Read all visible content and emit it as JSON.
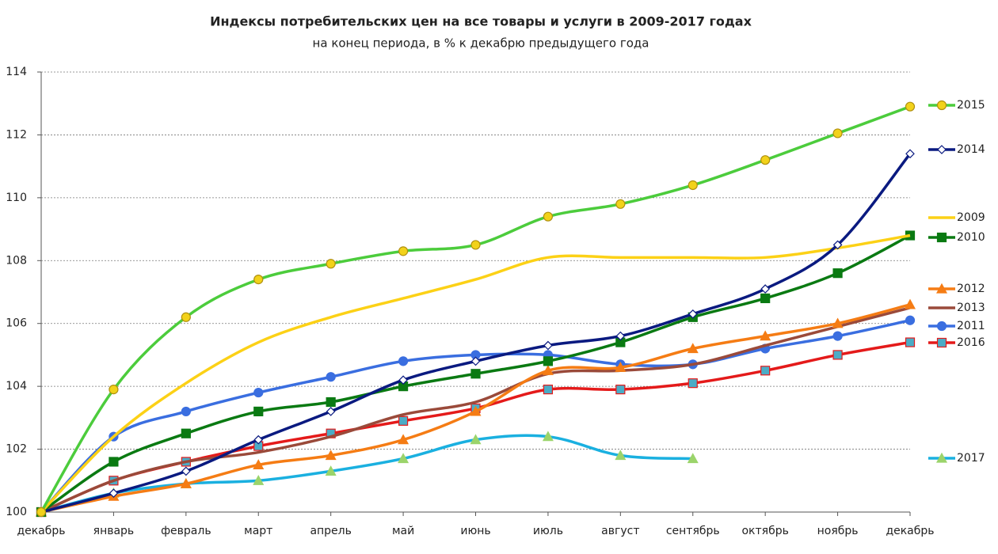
{
  "chart_data": {
    "type": "line",
    "title": "Индексы потребительских цен на все товары и услуги в 2009-2017 годах",
    "subtitle": "на конец периода, в % к декабрю предыдущего года",
    "categories": [
      "декабрь",
      "январь",
      "февраль",
      "март",
      "апрель",
      "май",
      "июнь",
      "июль",
      "август",
      "сентябрь",
      "октябрь",
      "ноябрь",
      "декабрь"
    ],
    "ylim": [
      100,
      114
    ],
    "yticks": [
      100,
      102,
      104,
      106,
      108,
      110,
      112,
      114
    ],
    "grid": true,
    "legend": "right",
    "series": [
      {
        "name": "2015",
        "color": "#4ccc3c",
        "marker": "circle",
        "marker_fill": "#f2d21a",
        "values": [
          100,
          103.9,
          106.2,
          107.4,
          107.9,
          108.3,
          108.5,
          109.4,
          109.8,
          110.4,
          111.2,
          112.05,
          112.9
        ]
      },
      {
        "name": "2014",
        "color": "#0a1a80",
        "marker": "diamond",
        "marker_fill": "#ffffff",
        "values": [
          100,
          100.6,
          101.3,
          102.3,
          103.2,
          104.2,
          104.8,
          105.3,
          105.6,
          106.3,
          107.1,
          108.5,
          111.4
        ]
      },
      {
        "name": "2009",
        "color": "#fcd116",
        "marker": "none",
        "marker_fill": "#fcd116",
        "values": [
          100,
          102.4,
          104.1,
          105.4,
          106.2,
          106.8,
          107.4,
          108.1,
          108.1,
          108.1,
          108.1,
          108.4,
          108.8
        ]
      },
      {
        "name": "2010",
        "color": "#0a7a12",
        "marker": "square",
        "marker_fill": "#0a7a12",
        "values": [
          100,
          101.6,
          102.5,
          103.2,
          103.5,
          104.0,
          104.4,
          104.8,
          105.4,
          106.2,
          106.8,
          107.6,
          108.8
        ]
      },
      {
        "name": "2012",
        "color": "#f57c14",
        "marker": "triangle",
        "marker_fill": "#f57c14",
        "values": [
          100,
          100.5,
          100.9,
          101.5,
          101.8,
          102.3,
          103.2,
          104.5,
          104.6,
          105.2,
          105.6,
          106.0,
          106.6
        ]
      },
      {
        "name": "2013",
        "color": "#9a4a3a",
        "marker": "none",
        "marker_fill": "#9a4a3a",
        "values": [
          100,
          101.0,
          101.6,
          101.9,
          102.4,
          103.1,
          103.5,
          104.4,
          104.5,
          104.7,
          105.3,
          105.9,
          106.5
        ]
      },
      {
        "name": "2011",
        "color": "#3a6ee0",
        "marker": "circle",
        "marker_fill": "#3a6ee0",
        "values": [
          100,
          102.4,
          103.2,
          103.8,
          104.3,
          104.8,
          105.0,
          105.0,
          104.7,
          104.7,
          105.2,
          105.6,
          106.1
        ]
      },
      {
        "name": "2016",
        "color": "#e41a1a",
        "marker": "square",
        "marker_fill": "#4bacc6",
        "values": [
          100,
          101.0,
          101.6,
          102.1,
          102.5,
          102.9,
          103.3,
          103.9,
          103.9,
          104.1,
          104.5,
          105.0,
          105.4
        ]
      },
      {
        "name": "2017",
        "color": "#1ab0e0",
        "marker": "triangle",
        "marker_fill": "#9bd46b",
        "values": [
          100,
          100.6,
          100.9,
          101.0,
          101.3,
          101.7,
          102.3,
          102.4,
          101.8,
          101.7,
          null,
          null,
          null
        ]
      }
    ]
  }
}
